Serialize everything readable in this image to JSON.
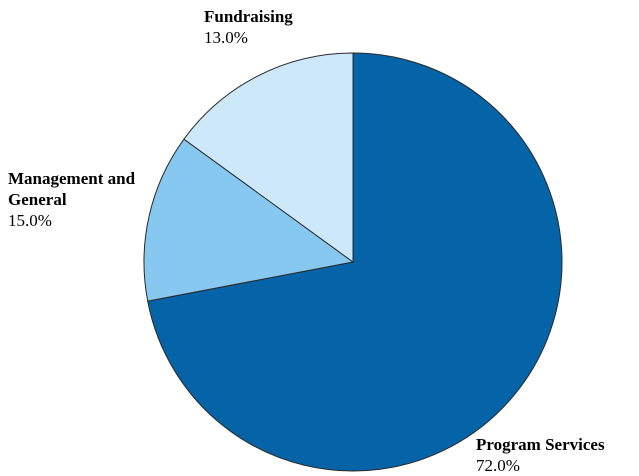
{
  "chart_data": {
    "type": "pie",
    "slices": [
      {
        "name": "Program Services",
        "value": 72.0,
        "label": "72.0%",
        "color": "#0563a7"
      },
      {
        "name": "Fundraising",
        "value": 13.0,
        "label": "13.0%",
        "color": "#86c8f0"
      },
      {
        "name": "Management and General",
        "value": 15.0,
        "label": "15.0%",
        "color": "#cde8f8"
      }
    ],
    "stroke_color": "#2a2a2a"
  }
}
